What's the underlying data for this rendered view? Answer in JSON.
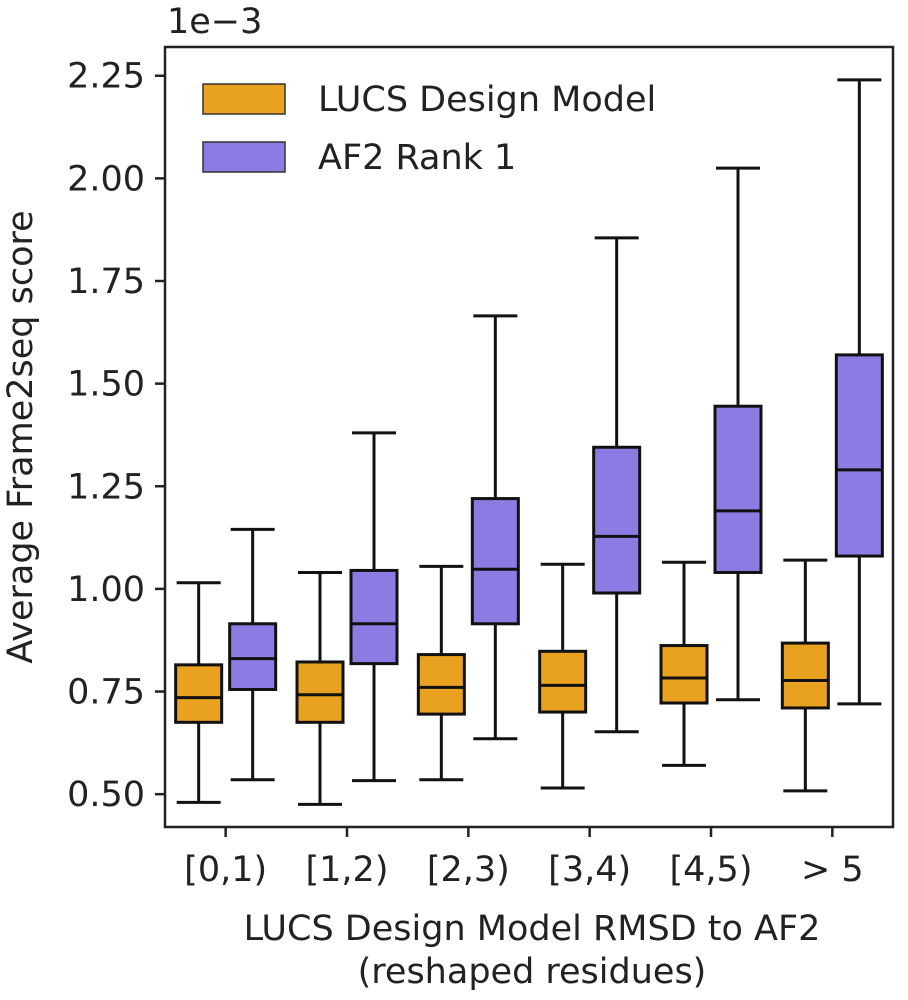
{
  "chart_data": {
    "type": "boxplot",
    "offset_label": "1e−3",
    "xlabel_line1": "LUCS Design Model RMSD to AF2",
    "xlabel_line2": "(reshaped residues)",
    "ylabel": "Average Frame2seq score",
    "ylim": [
      0.42,
      2.32
    ],
    "yticks": [
      "0.50",
      "0.75",
      "1.00",
      "1.25",
      "1.50",
      "1.75",
      "2.00",
      "2.25"
    ],
    "categories": [
      "[0,1)",
      "[1,2)",
      "[2,3)",
      "[3,4)",
      "[4,5)",
      "> 5"
    ],
    "legend_position": "top-left",
    "series": [
      {
        "name": "LUCS Design Model",
        "color": "#E9A21F",
        "boxes": [
          {
            "whislo": 0.48,
            "q1": 0.675,
            "med": 0.735,
            "q3": 0.815,
            "whishi": 1.015
          },
          {
            "whislo": 0.475,
            "q1": 0.675,
            "med": 0.742,
            "q3": 0.822,
            "whishi": 1.04
          },
          {
            "whislo": 0.535,
            "q1": 0.695,
            "med": 0.76,
            "q3": 0.84,
            "whishi": 1.055
          },
          {
            "whislo": 0.515,
            "q1": 0.7,
            "med": 0.765,
            "q3": 0.848,
            "whishi": 1.06
          },
          {
            "whislo": 0.57,
            "q1": 0.722,
            "med": 0.783,
            "q3": 0.862,
            "whishi": 1.065
          },
          {
            "whislo": 0.508,
            "q1": 0.71,
            "med": 0.777,
            "q3": 0.868,
            "whishi": 1.07
          }
        ]
      },
      {
        "name": "AF2 Rank 1",
        "color": "#8B7BE3",
        "boxes": [
          {
            "whislo": 0.535,
            "q1": 0.755,
            "med": 0.83,
            "q3": 0.915,
            "whishi": 1.145
          },
          {
            "whislo": 0.533,
            "q1": 0.818,
            "med": 0.915,
            "q3": 1.045,
            "whishi": 1.38
          },
          {
            "whislo": 0.635,
            "q1": 0.915,
            "med": 1.048,
            "q3": 1.22,
            "whishi": 1.665
          },
          {
            "whislo": 0.652,
            "q1": 0.99,
            "med": 1.128,
            "q3": 1.345,
            "whishi": 1.855
          },
          {
            "whislo": 0.73,
            "q1": 1.04,
            "med": 1.19,
            "q3": 1.445,
            "whishi": 2.025
          },
          {
            "whislo": 0.72,
            "q1": 1.08,
            "med": 1.29,
            "q3": 1.57,
            "whishi": 2.24
          }
        ]
      }
    ]
  }
}
